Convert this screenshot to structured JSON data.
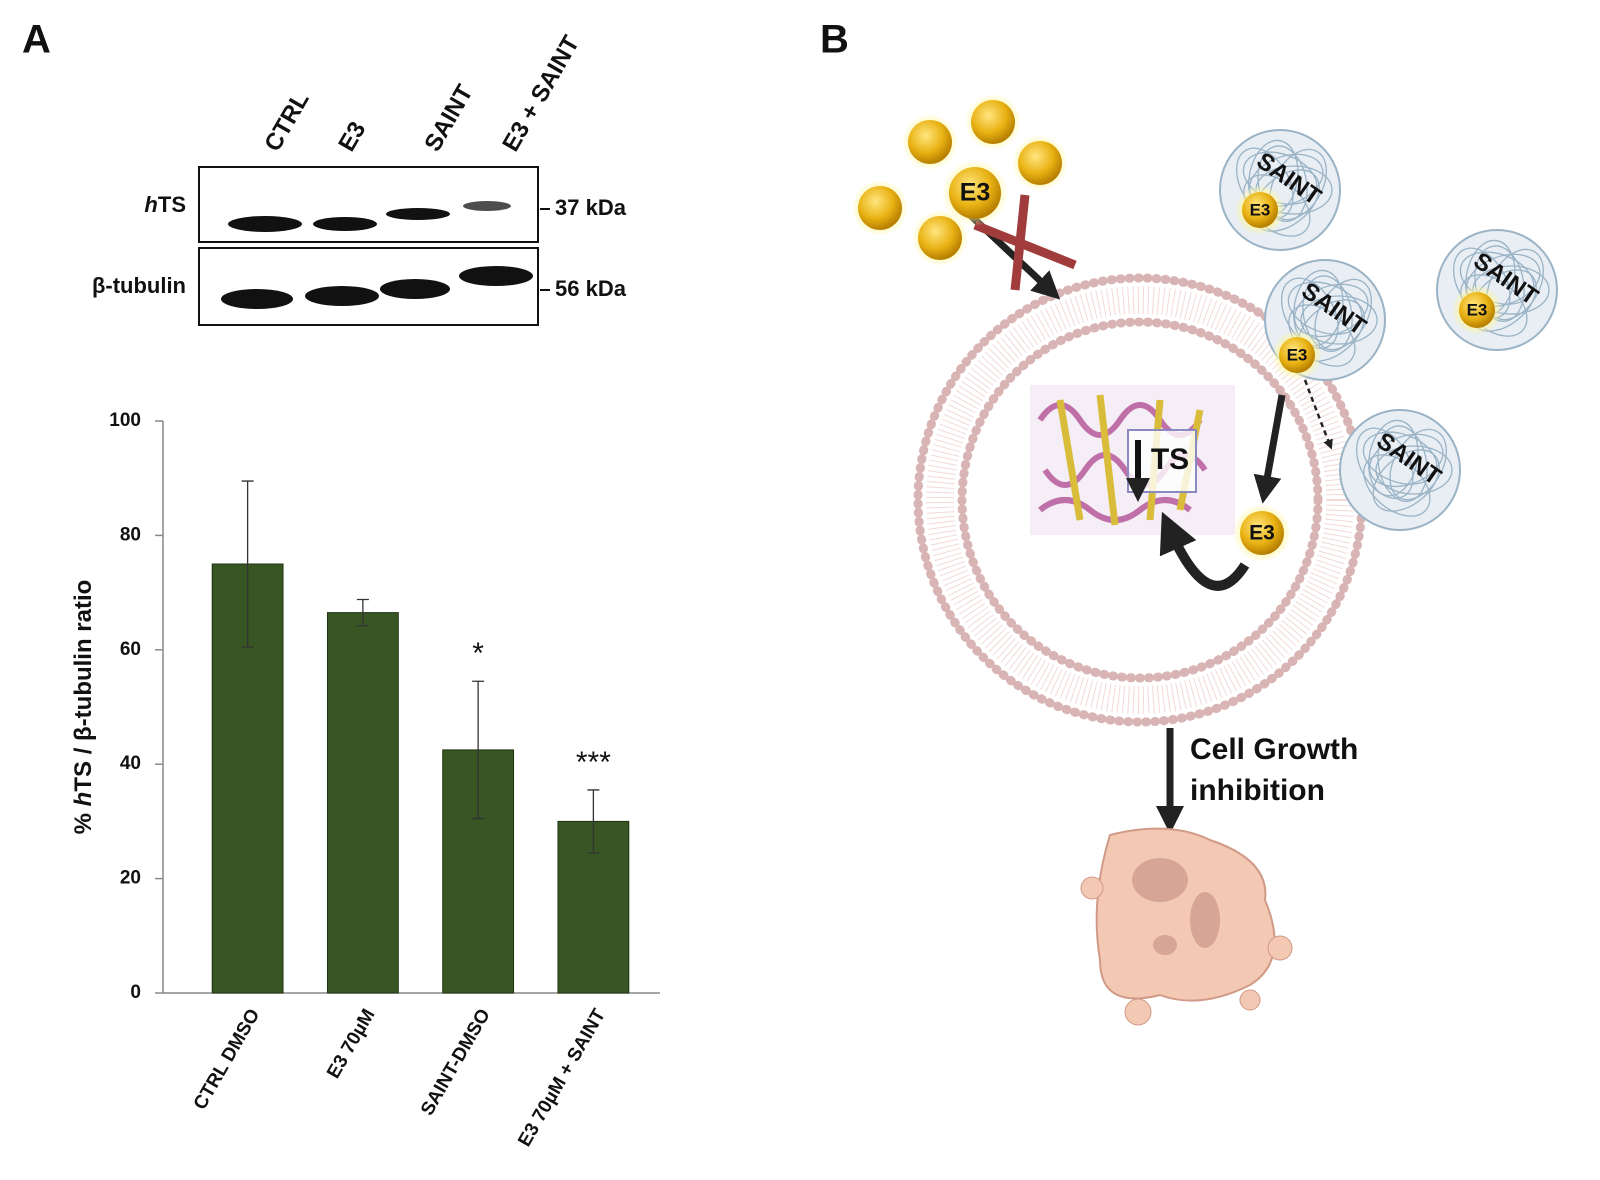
{
  "panels": [
    "A",
    "B"
  ],
  "blot": {
    "lanes": [
      "CTRL",
      "E3",
      "SAINT",
      "E3 + SAINT"
    ],
    "rows": [
      {
        "label": [
          "h",
          "TS"
        ],
        "marker": "37 kDa"
      },
      {
        "label": [
          "β-tubulin"
        ],
        "marker": "56 kDa"
      }
    ]
  },
  "chart_data": {
    "type": "bar",
    "ylabel": [
      "% ",
      "h",
      "TS / β-tubulin ratio"
    ],
    "categories": [
      "CTRL DMSO",
      "E3 70µM",
      "SAINT-DMSO",
      "E3 70µM + SAINT"
    ],
    "values": [
      75,
      66.5,
      42.5,
      30
    ],
    "errors": [
      14.5,
      2.3,
      12,
      5.5
    ],
    "significance": [
      null,
      null,
      "*",
      "***"
    ],
    "color": "#375623",
    "ylim": [
      0,
      100
    ],
    "yticks": [
      0,
      20,
      40,
      60,
      80,
      100
    ],
    "grid": false
  },
  "diagram": {
    "free_drug": "E3",
    "liposomes": [
      {
        "label": "SAINT",
        "cargo": "E3"
      },
      {
        "label": "SAINT",
        "cargo": "E3"
      },
      {
        "label": "SAINT",
        "cargo": "E3"
      },
      {
        "label": "SAINT"
      }
    ],
    "target": "TS",
    "released_drug": "E3",
    "outcome": [
      "Cell Growth",
      "inhibition"
    ]
  }
}
